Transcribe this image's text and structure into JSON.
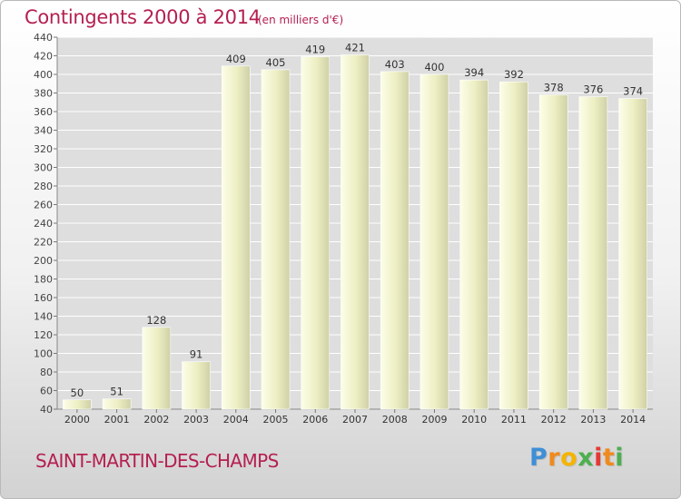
{
  "header": {
    "title": "Contingents 2000 à 2014",
    "subtitle": "(en milliers d'€)"
  },
  "footer": {
    "commune": "SAINT-MARTIN-DES-CHAMPS",
    "logo_text": "Proxiti"
  },
  "colors": {
    "title": "#b5204f",
    "bar_light": "#fbfde0",
    "bar_dark": "#d2d3a8",
    "plot_background": "#dedede",
    "grid": "#ffffff"
  },
  "chart_data": {
    "type": "bar",
    "categories": [
      "2000",
      "2001",
      "2002",
      "2003",
      "2004",
      "2005",
      "2006",
      "2007",
      "2008",
      "2009",
      "2010",
      "2011",
      "2012",
      "2013",
      "2014"
    ],
    "values": [
      50,
      51,
      128,
      91,
      409,
      405,
      419,
      421,
      403,
      400,
      394,
      392,
      378,
      376,
      374
    ],
    "title": "Contingents 2000 à 2014",
    "subtitle": "(en milliers d'€)",
    "xlabel": "",
    "ylabel": "",
    "ylim": [
      40,
      440
    ],
    "yticks": [
      40,
      60,
      80,
      100,
      120,
      140,
      160,
      180,
      200,
      220,
      240,
      260,
      280,
      300,
      320,
      340,
      360,
      380,
      400,
      420,
      440
    ],
    "grid": true,
    "data_labels": true
  }
}
